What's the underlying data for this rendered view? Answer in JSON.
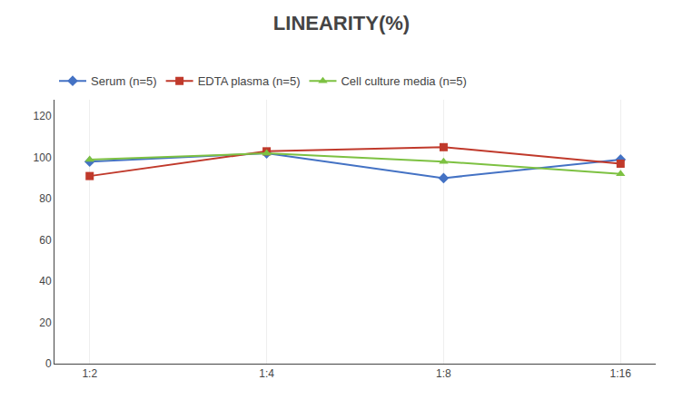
{
  "chart_data": {
    "type": "line",
    "title": "LINEARITY(%)",
    "categories": [
      "1:2",
      "1:4",
      "1:8",
      "1:16"
    ],
    "series": [
      {
        "name": "Serum (n=5)",
        "color": "#4472C4",
        "marker": "diamond",
        "values": [
          98,
          102,
          90,
          99
        ]
      },
      {
        "name": "EDTA plasma (n=5)",
        "color": "#C0392B",
        "marker": "square",
        "values": [
          91,
          103,
          105,
          97
        ]
      },
      {
        "name": "Cell culture media (n=5)",
        "color": "#7DC142",
        "marker": "triangle-up",
        "values": [
          99,
          102,
          98,
          92
        ]
      }
    ],
    "ylim": [
      0,
      128
    ],
    "yticks": [
      0,
      20,
      40,
      60,
      80,
      100,
      120
    ],
    "grid": "x",
    "legend": "top"
  }
}
